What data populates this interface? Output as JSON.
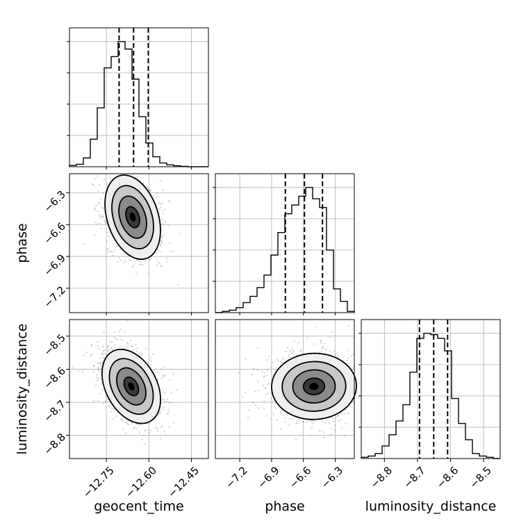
{
  "chart_data": {
    "type": "corner",
    "parameters": [
      "geocent_time",
      "phase",
      "luminosity_distance"
    ],
    "ranges": {
      "geocent_time": [
        -12.88,
        -12.39
      ],
      "phase": [
        -7.43,
        -6.12
      ],
      "luminosity_distance": [
        -8.87,
        -8.45
      ]
    },
    "ticks": {
      "geocent_time": [
        -12.75,
        -12.6,
        -12.45
      ],
      "phase": [
        -7.2,
        -6.9,
        -6.6,
        -6.3
      ],
      "luminosity_distance": [
        -8.8,
        -8.7,
        -8.6,
        -8.5
      ]
    },
    "tick_labels": {
      "geocent_time": [
        "−12.75",
        "−12.60",
        "−12.45"
      ],
      "phase": [
        "−7.2",
        "−6.9",
        "−6.6",
        "−6.3"
      ],
      "luminosity_distance": [
        "−8.8",
        "−8.7",
        "−8.6",
        "−8.5"
      ]
    },
    "quantiles": {
      "geocent_time": [
        -12.705,
        -12.654,
        -12.602
      ],
      "phase": [
        -6.77,
        -6.59,
        -6.42
      ],
      "luminosity_distance": [
        -8.694,
        -8.651,
        -8.609
      ]
    },
    "histograms": {
      "geocent_time": {
        "edges": [
          -12.88,
          -12.8555,
          -12.831,
          -12.8065,
          -12.782,
          -12.7575,
          -12.733,
          -12.7085,
          -12.684,
          -12.6595,
          -12.635,
          -12.6105,
          -12.586,
          -12.5615,
          -12.537,
          -12.5125,
          -12.488,
          -12.4635,
          -12.439,
          -12.4145,
          -12.39
        ],
        "counts": [
          0.01,
          0.02,
          0.07,
          0.22,
          0.47,
          0.79,
          0.88,
          1.0,
          0.94,
          0.7,
          0.4,
          0.19,
          0.08,
          0.03,
          0.015,
          0.008,
          0.003,
          0,
          0,
          0
        ]
      },
      "phase": {
        "edges": [
          -7.43,
          -7.3645,
          -7.299,
          -7.2335,
          -7.168,
          -7.1025,
          -7.037,
          -6.9715,
          -6.906,
          -6.8405,
          -6.775,
          -6.7095,
          -6.644,
          -6.5785,
          -6.513,
          -6.4475,
          -6.382,
          -6.3165,
          -6.251,
          -6.1855,
          -6.12
        ],
        "counts": [
          0,
          0.01,
          0.02,
          0.04,
          0.08,
          0.13,
          0.2,
          0.3,
          0.46,
          0.64,
          0.79,
          0.86,
          0.93,
          1.0,
          0.91,
          0.84,
          0.5,
          0.19,
          0.09,
          0.01
        ]
      },
      "luminosity_distance": {
        "edges": [
          -8.87,
          -8.849,
          -8.828,
          -8.807,
          -8.786,
          -8.765,
          -8.744,
          -8.723,
          -8.702,
          -8.681,
          -8.66,
          -8.639,
          -8.618,
          -8.597,
          -8.576,
          -8.555,
          -8.534,
          -8.513,
          -8.492,
          -8.471,
          -8.45
        ],
        "counts": [
          0.01,
          0.02,
          0.04,
          0.1,
          0.19,
          0.3,
          0.43,
          0.69,
          0.96,
          1.0,
          0.99,
          0.96,
          0.86,
          0.48,
          0.28,
          0.15,
          0.04,
          0.02,
          0.01,
          0
        ]
      }
    },
    "joint": [
      {
        "x": "geocent_time",
        "y": "phase",
        "peak": [
          -12.657,
          -6.53
        ],
        "sigma": [
          0.045,
          0.205
        ],
        "rotation_deg": 18
      },
      {
        "x": "geocent_time",
        "y": "luminosity_distance",
        "peak": [
          -12.662,
          -8.652
        ],
        "sigma": [
          0.045,
          0.06
        ],
        "rotation_deg": 28
      },
      {
        "x": "phase",
        "y": "luminosity_distance",
        "peak": [
          -6.5,
          -8.652
        ],
        "sigma": [
          0.2,
          0.05
        ],
        "rotation_deg": 2
      }
    ],
    "contour_levels_sigma": [
      0.5,
      1.0,
      1.5,
      2.0
    ],
    "grid": true,
    "histogram_type": "step"
  },
  "labels": {
    "geocent_time": "geocent_time",
    "phase": "phase",
    "luminosity_distance": "luminosity_distance"
  }
}
